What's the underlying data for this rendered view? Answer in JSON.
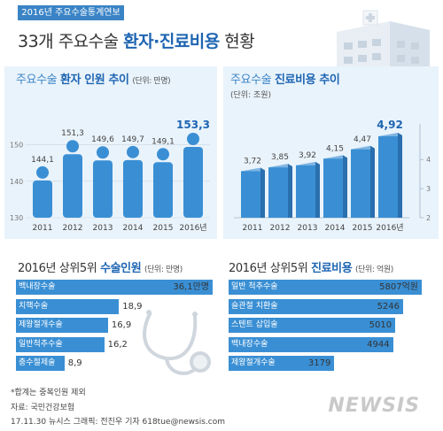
{
  "header": {
    "badge": "2016년 주요수술통계연보",
    "title_prefix": "33개 주요수술 ",
    "title_bold": "환자·진료비용",
    "title_suffix": " 현황"
  },
  "chart_data": [
    {
      "type": "bar",
      "title_prefix": "주요수술 ",
      "title_bold": "환자 인원 추이",
      "unit": "(단위: 만명)",
      "categories": [
        "2011",
        "2012",
        "2013",
        "2014",
        "2015",
        "2016년"
      ],
      "values": [
        144.1,
        151.3,
        149.6,
        149.7,
        149.1,
        153.3
      ],
      "value_labels": [
        "144,1",
        "151,3",
        "149,6",
        "149,7",
        "149,1",
        "153,3"
      ],
      "yticks": [
        130,
        140,
        150
      ],
      "ylim": [
        130,
        153.3
      ],
      "bar_style": "person-icon",
      "color": "#3a8fd4"
    },
    {
      "type": "bar",
      "title_prefix": "주요수술 ",
      "title_bold": "진료비용 추이",
      "unit": "(단위: 조원)",
      "categories": [
        "2011",
        "2012",
        "2013",
        "2014",
        "2015",
        "2016년"
      ],
      "values": [
        3.72,
        3.85,
        3.92,
        4.15,
        4.47,
        4.92
      ],
      "value_labels": [
        "3,72",
        "3,85",
        "3,92",
        "4,15",
        "4,47",
        "4,92"
      ],
      "yticks": [
        2,
        3,
        4
      ],
      "ylim": [
        2,
        4.92
      ],
      "bar_style": "building",
      "color": "#3a8fd4"
    },
    {
      "type": "bar",
      "orientation": "horizontal",
      "title_prefix": "2016년 상위5위 ",
      "title_bold": "수술인원",
      "unit": "(단위: 만명)",
      "categories": [
        "백내장수술",
        "치핵수술",
        "제왕절개수술",
        "일반척추수술",
        "충수절제술"
      ],
      "values": [
        36.1,
        18.9,
        16.9,
        16.2,
        8.9
      ],
      "value_labels": [
        "36,1만명",
        "18,9",
        "16,9",
        "16,2",
        "8,9"
      ],
      "color": "#3a8fd4"
    },
    {
      "type": "bar",
      "orientation": "horizontal",
      "title_prefix": "2016년 상위5위 ",
      "title_bold": "진료비용",
      "unit": "(단위: 억원)",
      "categories": [
        "일반 척추수술",
        "슬관절 치환술",
        "스텐트 삽입술",
        "백내장수술",
        "제왕절개수술"
      ],
      "values": [
        5807,
        5246,
        5010,
        4944,
        3179
      ],
      "value_labels": [
        "5807억원",
        "5246",
        "5010",
        "4944",
        "3179"
      ],
      "color": "#3a8fd4"
    }
  ],
  "footer": {
    "note": "*합계는 중복인원 제외",
    "source": "자료: 국민건강보험",
    "credit": "17.11.30  뉴시스 그래픽: 전진우 기자 618tue@newsis.com",
    "logo": "NEWSIS"
  },
  "colors": {
    "accent": "#1e65b2",
    "bar": "#3a8fd4",
    "panel": "#e9f3fb"
  }
}
